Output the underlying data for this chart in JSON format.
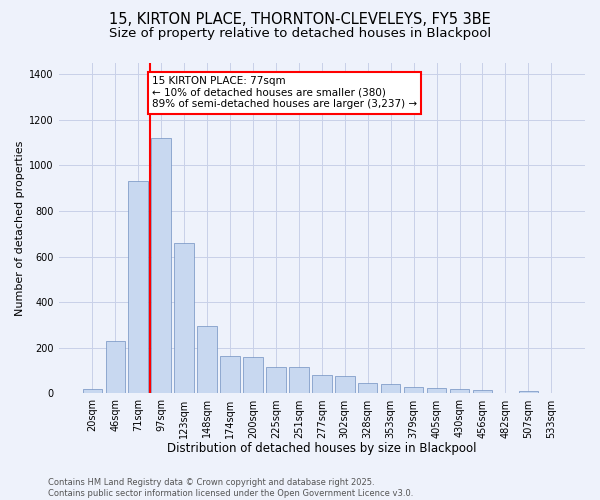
{
  "title1": "15, KIRTON PLACE, THORNTON-CLEVELEYS, FY5 3BE",
  "title2": "Size of property relative to detached houses in Blackpool",
  "xlabel": "Distribution of detached houses by size in Blackpool",
  "ylabel": "Number of detached properties",
  "categories": [
    "20sqm",
    "46sqm",
    "71sqm",
    "97sqm",
    "123sqm",
    "148sqm",
    "174sqm",
    "200sqm",
    "225sqm",
    "251sqm",
    "277sqm",
    "302sqm",
    "328sqm",
    "353sqm",
    "379sqm",
    "405sqm",
    "430sqm",
    "456sqm",
    "482sqm",
    "507sqm",
    "533sqm"
  ],
  "values": [
    20,
    230,
    930,
    1120,
    660,
    295,
    165,
    160,
    115,
    115,
    80,
    75,
    45,
    40,
    30,
    25,
    20,
    15,
    0,
    10,
    0
  ],
  "bar_color": "#c8d8f0",
  "bar_edge_color": "#7090c0",
  "vline_x": 2.5,
  "vline_color": "red",
  "annotation_text": "15 KIRTON PLACE: 77sqm\n← 10% of detached houses are smaller (380)\n89% of semi-detached houses are larger (3,237) →",
  "annotation_box_color": "white",
  "annotation_box_edge_color": "red",
  "ylim": [
    0,
    1450
  ],
  "yticks": [
    0,
    200,
    400,
    600,
    800,
    1000,
    1200,
    1400
  ],
  "bg_color": "#eef2fb",
  "grid_color": "#c8d0e8",
  "footer_text": "Contains HM Land Registry data © Crown copyright and database right 2025.\nContains public sector information licensed under the Open Government Licence v3.0.",
  "title1_fontsize": 10.5,
  "title2_fontsize": 9.5,
  "xlabel_fontsize": 8.5,
  "ylabel_fontsize": 8,
  "tick_fontsize": 7,
  "annotation_fontsize": 7.5,
  "footer_fontsize": 6
}
